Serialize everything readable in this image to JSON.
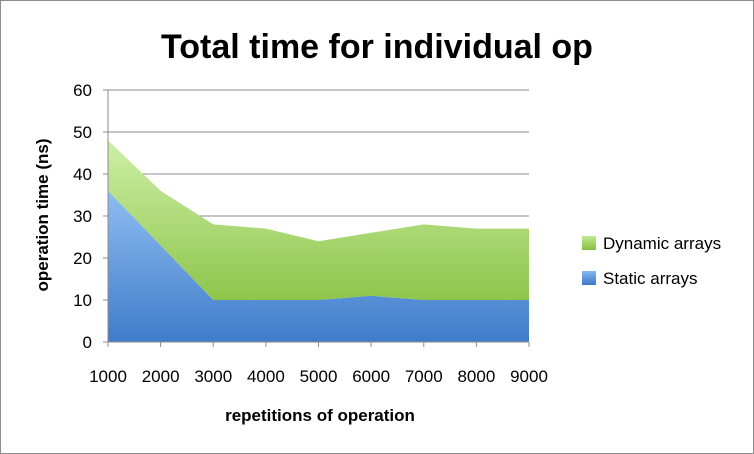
{
  "chart_data": {
    "type": "area",
    "stacked": true,
    "title": "Total time for individual op",
    "xlabel": "repetitions of operation",
    "ylabel": "operation time (ns)",
    "categories": [
      "1000",
      "2000",
      "3000",
      "4000",
      "5000",
      "6000",
      "7000",
      "8000",
      "9000"
    ],
    "ylim": [
      0,
      60
    ],
    "yticks": [
      "0",
      "10",
      "20",
      "30",
      "40",
      "50",
      "60"
    ],
    "grid": true,
    "legend_position": "right",
    "series": [
      {
        "name": "Static arrays",
        "values": [
          36,
          23,
          10,
          10,
          10,
          11,
          10,
          10,
          10
        ],
        "color": "#4a86d4"
      },
      {
        "name": "Dynamic arrays",
        "values": [
          12,
          13,
          18,
          17,
          14,
          15,
          18,
          17,
          17
        ],
        "color": "#97cc55"
      }
    ],
    "legend_order": [
      "Dynamic arrays",
      "Static arrays"
    ]
  }
}
